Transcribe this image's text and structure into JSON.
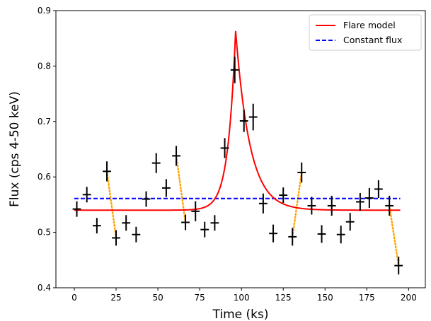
{
  "chart_data": {
    "type": "scatter",
    "xlabel": "Time (ks)",
    "ylabel": "Flux (cps 4-50 keV)",
    "xlim": [
      -11,
      210
    ],
    "ylim": [
      0.4,
      0.9
    ],
    "xticks": [
      0,
      25,
      50,
      75,
      100,
      125,
      150,
      175,
      200
    ],
    "yticks": [
      0.4,
      0.5,
      0.6,
      0.7,
      0.8,
      0.9
    ],
    "legend_position": "top-right",
    "series": [
      {
        "name": "Flare model",
        "kind": "line",
        "color": "#ff0000",
        "style": "solid",
        "baseline": 0.54,
        "peak_time": 96.5,
        "peak_amplitude": 0.324,
        "rise_timescale": 4.5,
        "decay_timescale": 8.5,
        "x_range": [
          0,
          195
        ]
      },
      {
        "name": "Constant flux",
        "kind": "line",
        "color": "#0000ff",
        "style": "dashed",
        "value": 0.561,
        "x_range": [
          0,
          195
        ]
      },
      {
        "name": "",
        "kind": "errorbar",
        "color": "#000000",
        "x_error": 2.5,
        "points": [
          {
            "x": 1.5,
            "y": 0.542,
            "yerr": 0.014
          },
          {
            "x": 7.5,
            "y": 0.568,
            "yerr": 0.014
          },
          {
            "x": 13.5,
            "y": 0.512,
            "yerr": 0.014
          },
          {
            "x": 19.5,
            "y": 0.61,
            "yerr": 0.018
          },
          {
            "x": 25,
            "y": 0.49,
            "yerr": 0.014
          },
          {
            "x": 31,
            "y": 0.517,
            "yerr": 0.014
          },
          {
            "x": 37,
            "y": 0.496,
            "yerr": 0.014
          },
          {
            "x": 43,
            "y": 0.56,
            "yerr": 0.014
          },
          {
            "x": 49,
            "y": 0.625,
            "yerr": 0.018
          },
          {
            "x": 55,
            "y": 0.58,
            "yerr": 0.016
          },
          {
            "x": 61,
            "y": 0.638,
            "yerr": 0.018
          },
          {
            "x": 66.5,
            "y": 0.518,
            "yerr": 0.014
          },
          {
            "x": 72.5,
            "y": 0.538,
            "yerr": 0.018
          },
          {
            "x": 78,
            "y": 0.505,
            "yerr": 0.014
          },
          {
            "x": 84,
            "y": 0.517,
            "yerr": 0.014
          },
          {
            "x": 90,
            "y": 0.652,
            "yerr": 0.018
          },
          {
            "x": 96,
            "y": 0.793,
            "yerr": 0.024
          },
          {
            "x": 101.5,
            "y": 0.701,
            "yerr": 0.02
          },
          {
            "x": 107,
            "y": 0.708,
            "yerr": 0.024
          },
          {
            "x": 113,
            "y": 0.552,
            "yerr": 0.018
          },
          {
            "x": 119,
            "y": 0.498,
            "yerr": 0.016
          },
          {
            "x": 125,
            "y": 0.567,
            "yerr": 0.014
          },
          {
            "x": 130.5,
            "y": 0.492,
            "yerr": 0.016
          },
          {
            "x": 136,
            "y": 0.608,
            "yerr": 0.018
          },
          {
            "x": 142,
            "y": 0.548,
            "yerr": 0.016
          },
          {
            "x": 148,
            "y": 0.497,
            "yerr": 0.016
          },
          {
            "x": 154,
            "y": 0.548,
            "yerr": 0.018
          },
          {
            "x": 159.5,
            "y": 0.496,
            "yerr": 0.016
          },
          {
            "x": 165,
            "y": 0.519,
            "yerr": 0.016
          },
          {
            "x": 171,
            "y": 0.555,
            "yerr": 0.016
          },
          {
            "x": 176.5,
            "y": 0.562,
            "yerr": 0.018
          },
          {
            "x": 182,
            "y": 0.578,
            "yerr": 0.016
          },
          {
            "x": 188.5,
            "y": 0.548,
            "yerr": 0.018
          },
          {
            "x": 194,
            "y": 0.44,
            "yerr": 0.016
          }
        ]
      },
      {
        "name": "",
        "kind": "dotted-connectors",
        "color": "#ffa500",
        "segments": [
          [
            [
              19.5,
              0.61
            ],
            [
              25,
              0.49
            ]
          ],
          [
            [
              61,
              0.638
            ],
            [
              66.5,
              0.518
            ]
          ],
          [
            [
              130.5,
              0.492
            ],
            [
              136,
              0.608
            ]
          ],
          [
            [
              188.5,
              0.548
            ],
            [
              194,
              0.44
            ]
          ]
        ]
      }
    ]
  }
}
